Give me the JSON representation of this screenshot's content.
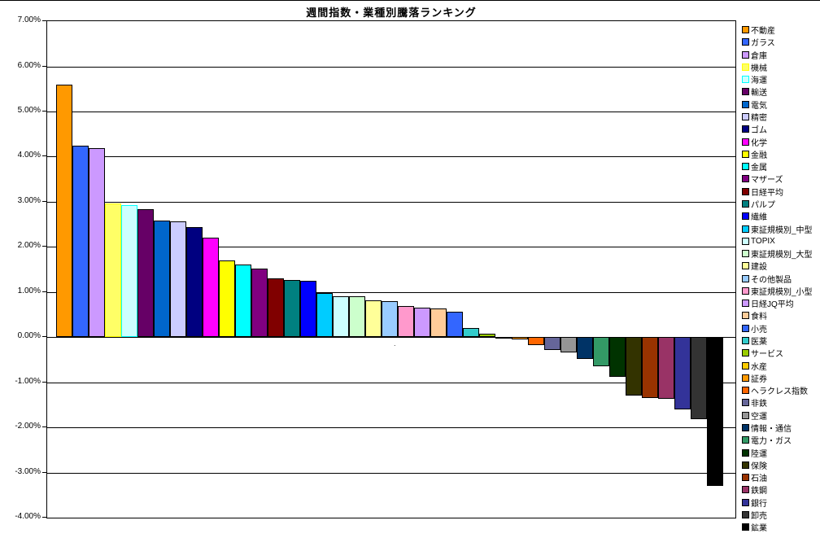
{
  "chart_data": {
    "type": "bar",
    "title": "週間指数・業種別騰落ランキング",
    "xlabel": "",
    "ylabel": "",
    "ylim": [
      -4,
      7
    ],
    "grid": true,
    "legend_position": "right",
    "x_axis_marker": ".",
    "y_ticks": [
      "7.00%",
      "6.00%",
      "5.00%",
      "4.00%",
      "3.00%",
      "2.00%",
      "1.00%",
      "0.00%",
      "-1.00%",
      "-2.00%",
      "-3.00%",
      "-4.00%"
    ],
    "value_unit": "percent",
    "series": [
      {
        "name": "不動産",
        "value": 5.6,
        "fill": "#FF9900",
        "border": "#000000"
      },
      {
        "name": "ガラス",
        "value": 4.24,
        "fill": "#3366FF",
        "border": "#000000"
      },
      {
        "name": "倉庫",
        "value": 4.18,
        "fill": "#CC99FF",
        "border": "#000000"
      },
      {
        "name": "機械",
        "value": 2.97,
        "fill": "#FFFF66",
        "border": "#FFFF00"
      },
      {
        "name": "海運",
        "value": 2.93,
        "fill": "#CCFFFF",
        "border": "#00FFFF"
      },
      {
        "name": "輸送",
        "value": 2.83,
        "fill": "#660066",
        "border": "#000000"
      },
      {
        "name": "電気",
        "value": 2.58,
        "fill": "#0066CC",
        "border": "#000000"
      },
      {
        "name": "精密",
        "value": 2.56,
        "fill": "#CCCCFF",
        "border": "#000000"
      },
      {
        "name": "ゴム",
        "value": 2.43,
        "fill": "#000080",
        "border": "#000000"
      },
      {
        "name": "化学",
        "value": 2.21,
        "fill": "#FF00FF",
        "border": "#000000"
      },
      {
        "name": "金融",
        "value": 1.7,
        "fill": "#FFFF00",
        "border": "#000000"
      },
      {
        "name": "金属",
        "value": 1.61,
        "fill": "#00FFFF",
        "border": "#000000"
      },
      {
        "name": "マザーズ",
        "value": 1.52,
        "fill": "#800080",
        "border": "#000000"
      },
      {
        "name": "日経平均",
        "value": 1.3,
        "fill": "#800000",
        "border": "#000000"
      },
      {
        "name": "パルプ",
        "value": 1.27,
        "fill": "#008080",
        "border": "#000000"
      },
      {
        "name": "繊維",
        "value": 1.24,
        "fill": "#0000FF",
        "border": "#000000"
      },
      {
        "name": "東証規模別_中型",
        "value": 0.98,
        "fill": "#00CCFF",
        "border": "#000000"
      },
      {
        "name": "TOPIX",
        "value": 0.91,
        "fill": "#CCFFFF",
        "border": "#000000"
      },
      {
        "name": "東証規模別_大型",
        "value": 0.9,
        "fill": "#CCFFCC",
        "border": "#000000"
      },
      {
        "name": "建設",
        "value": 0.81,
        "fill": "#FFFF99",
        "border": "#000000"
      },
      {
        "name": "その他製品",
        "value": 0.79,
        "fill": "#99CCFF",
        "border": "#000000"
      },
      {
        "name": "東証規模別_小型",
        "value": 0.69,
        "fill": "#FF99CC",
        "border": "#000000"
      },
      {
        "name": "日経JQ平均",
        "value": 0.66,
        "fill": "#CC99FF",
        "border": "#000000"
      },
      {
        "name": "食料",
        "value": 0.63,
        "fill": "#FFCC99",
        "border": "#000000"
      },
      {
        "name": "小売",
        "value": 0.57,
        "fill": "#3366FF",
        "border": "#000000"
      },
      {
        "name": "医薬",
        "value": 0.21,
        "fill": "#33CCCC",
        "border": "#000000"
      },
      {
        "name": "サービス",
        "value": 0.08,
        "fill": "#99CC00",
        "border": "#000000"
      },
      {
        "name": "水産",
        "value": -0.02,
        "fill": "#FFCC00",
        "border": "#000000"
      },
      {
        "name": "証券",
        "value": -0.06,
        "fill": "#FF9900",
        "border": "#000000"
      },
      {
        "name": "ヘラクレス指数",
        "value": -0.17,
        "fill": "#FF6600",
        "border": "#000000"
      },
      {
        "name": "非鉄",
        "value": -0.28,
        "fill": "#666699",
        "border": "#000000"
      },
      {
        "name": "空運",
        "value": -0.34,
        "fill": "#969696",
        "border": "#000000"
      },
      {
        "name": "情報・通信",
        "value": -0.48,
        "fill": "#003366",
        "border": "#000000"
      },
      {
        "name": "電力・ガス",
        "value": -0.65,
        "fill": "#339966",
        "border": "#000000"
      },
      {
        "name": "陸運",
        "value": -0.88,
        "fill": "#003300",
        "border": "#000000"
      },
      {
        "name": "保険",
        "value": -1.3,
        "fill": "#333300",
        "border": "#000000"
      },
      {
        "name": "石油",
        "value": -1.35,
        "fill": "#993300",
        "border": "#000000"
      },
      {
        "name": "鉄鋼",
        "value": -1.37,
        "fill": "#993366",
        "border": "#000000"
      },
      {
        "name": "銀行",
        "value": -1.61,
        "fill": "#333399",
        "border": "#000000"
      },
      {
        "name": "卸売",
        "value": -1.81,
        "fill": "#333333",
        "border": "#000000"
      },
      {
        "name": "鉱業",
        "value": -3.3,
        "fill": "#000000",
        "border": "#000000"
      }
    ]
  }
}
